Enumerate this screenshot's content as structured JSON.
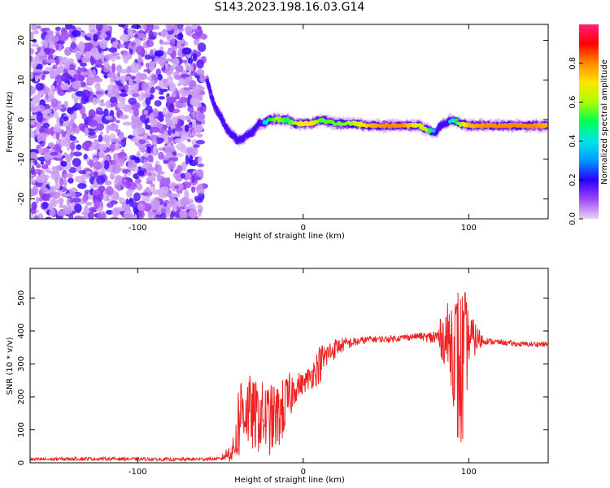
{
  "title": "S143.2023.198.16.03.G14",
  "chart_data": [
    {
      "type": "heatmap",
      "xlabel": "Height of straight line (km)",
      "ylabel": "Frequency (Hz)",
      "xlim": [
        -165,
        148
      ],
      "ylim": [
        -25,
        24
      ],
      "xticks": [
        -100,
        0,
        100
      ],
      "yticks": [
        20,
        10,
        0,
        -10,
        -20
      ],
      "grid": false,
      "noise_region_x": [
        -165,
        -60
      ],
      "ridge": {
        "name": "",
        "x": [
          -58,
          -55,
          -52,
          -50,
          -48,
          -45,
          -42,
          -40,
          -37,
          -34,
          -30,
          -27,
          -24,
          -20,
          -15,
          -10,
          -5,
          0,
          5,
          10,
          20,
          30,
          40,
          50,
          60,
          70,
          75,
          78,
          80,
          82,
          85,
          88,
          90,
          95,
          100,
          110,
          120,
          130,
          140,
          148
        ],
        "y": [
          10,
          5,
          2,
          1,
          -1,
          -3,
          -4,
          -5,
          -5,
          -4,
          -3,
          -1,
          -1,
          0,
          0,
          0,
          -1,
          -1,
          -1,
          0,
          -1,
          -1,
          -1.5,
          -1.5,
          -1.5,
          -1.5,
          -2.5,
          -3,
          -3.5,
          -2,
          -1,
          -0.5,
          0,
          -1,
          -1.5,
          -1.5,
          -1.5,
          -1.5,
          -1.5,
          -1.5
        ],
        "amplitude": [
          0.15,
          0.2,
          0.25,
          0.3,
          0.3,
          0.25,
          0.2,
          0.2,
          0.2,
          0.25,
          0.3,
          0.3,
          0.35,
          0.5,
          0.6,
          0.5,
          0.6,
          0.7,
          0.7,
          0.55,
          0.55,
          0.6,
          0.75,
          0.8,
          0.8,
          0.65,
          0.6,
          0.4,
          0.3,
          0.25,
          0.3,
          0.35,
          0.4,
          0.6,
          0.75,
          0.8,
          0.8,
          0.8,
          0.8,
          0.75
        ]
      },
      "colorbar": {
        "label": "Normalized spectral amplitude",
        "range": [
          0.0,
          1.0
        ],
        "ticks": [
          "0.0",
          "0.2",
          "0.4",
          "0.6",
          "0.8"
        ],
        "tick_values": [
          0.0,
          0.2,
          0.4,
          0.6,
          0.8
        ],
        "colors": [
          "#e6d4f7",
          "#9f46f2",
          "#2a00ff",
          "#0099ff",
          "#00e5e5",
          "#00ff55",
          "#a8ff00",
          "#ffe600",
          "#ff8a00",
          "#ff0000",
          "#ff1f7a"
        ]
      }
    },
    {
      "type": "line",
      "xlabel": "Height of straight line (km)",
      "ylabel": "SNR (10 * v/v)",
      "xlim": [
        -165,
        148
      ],
      "ylim": [
        0,
        590
      ],
      "xticks": [
        -100,
        0,
        100
      ],
      "yticks": [
        0,
        100,
        200,
        300,
        400,
        500
      ],
      "grid": false,
      "series": [
        {
          "name": "",
          "color": "#ee2222",
          "x": [
            -165,
            -140,
            -110,
            -80,
            -50,
            -42,
            -40,
            -38,
            -36,
            -34,
            -30,
            -25,
            -20,
            -15,
            -10,
            -5,
            0,
            5,
            10,
            15,
            20,
            25,
            30,
            40,
            50,
            60,
            70,
            75,
            80,
            85,
            90,
            93,
            95,
            97,
            100,
            110,
            120,
            130,
            140,
            148
          ],
          "y": [
            10,
            12,
            12,
            10,
            12,
            40,
            100,
            150,
            175,
            160,
            140,
            140,
            130,
            140,
            180,
            230,
            240,
            265,
            300,
            330,
            350,
            360,
            365,
            375,
            375,
            380,
            385,
            380,
            380,
            380,
            370,
            300,
            260,
            300,
            380,
            370,
            365,
            360,
            360,
            360
          ],
          "amp": [
            5,
            5,
            5,
            5,
            5,
            40,
            120,
            130,
            130,
            120,
            110,
            110,
            110,
            100,
            90,
            50,
            30,
            40,
            60,
            40,
            30,
            20,
            15,
            10,
            10,
            10,
            10,
            15,
            30,
            80,
            150,
            250,
            280,
            250,
            80,
            10,
            8,
            8,
            8,
            8
          ]
        }
      ]
    }
  ]
}
